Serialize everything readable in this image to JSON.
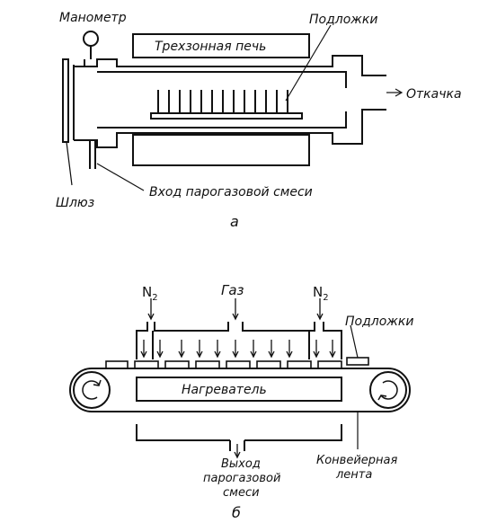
{
  "diagram_a": {
    "label_manometer": "Манометр",
    "label_furnace": "Трехзонная печь",
    "label_substrates": "Подложки",
    "label_exhaust": "Откачка",
    "label_inlet": "Вход парогазовой смеси",
    "label_lock": "Шлюз",
    "caption": "а"
  },
  "diagram_b": {
    "label_n2_left": "N",
    "label_n2_left_sub": "2",
    "label_gas": "Газ",
    "label_n2_right": "N",
    "label_n2_right_sub": "2",
    "label_substrates": "Подложки",
    "label_heater": "Нагреватель",
    "label_outlet_1": "Выход",
    "label_outlet_2": "парогазовой",
    "label_outlet_3": "смеси",
    "label_conveyor_1": "Конвейерная",
    "label_conveyor_2": "лента",
    "caption": "б"
  },
  "colors": {
    "ink": "#111111",
    "background": "#ffffff"
  }
}
